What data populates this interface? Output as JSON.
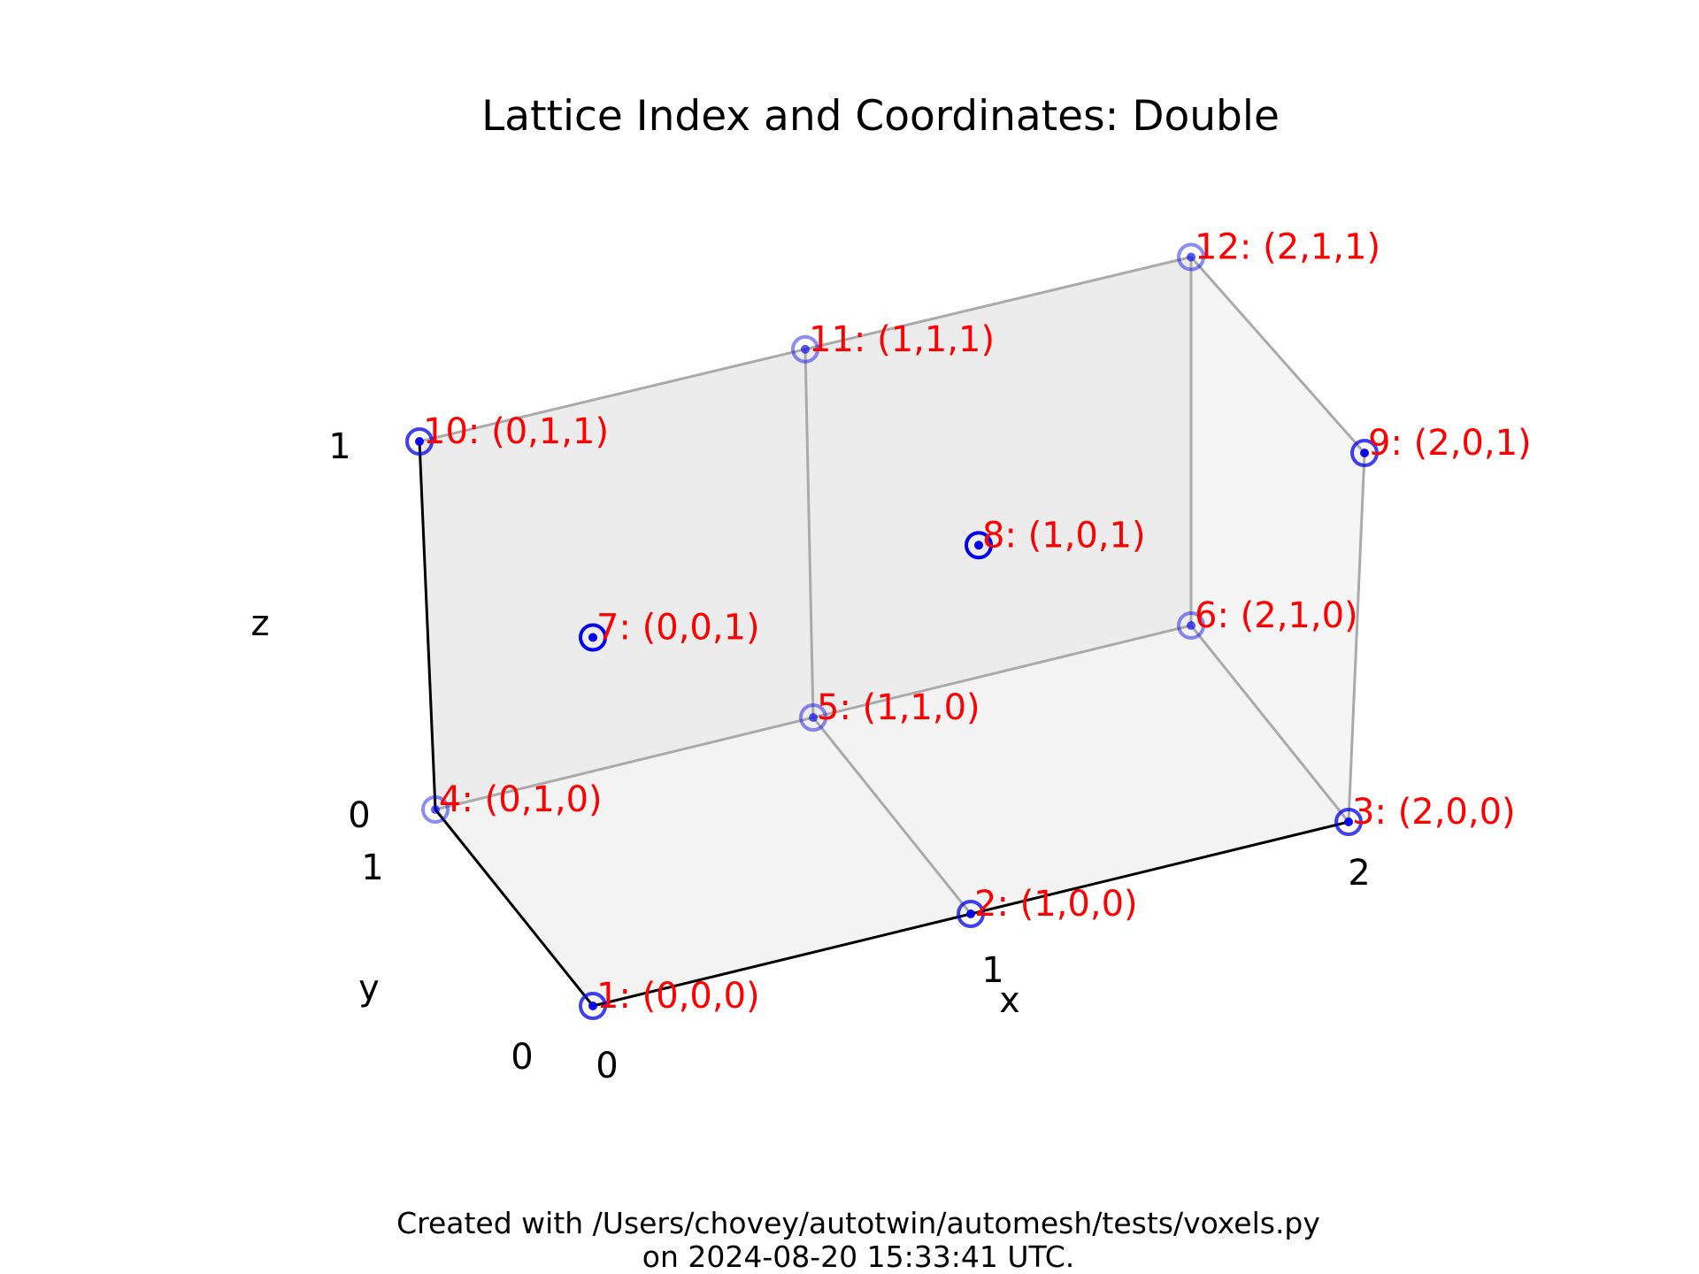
{
  "title": "Lattice Index and Coordinates: Double",
  "footer": {
    "line1": "Created with /Users/chovey/autotwin/automesh/tests/voxels.py",
    "line2": "on 2024-08-20 15:33:41 UTC."
  },
  "axes": {
    "x": {
      "label": "x",
      "ticks": [
        "0",
        "1",
        "2"
      ]
    },
    "y": {
      "label": "y",
      "ticks": [
        "0",
        "1"
      ]
    },
    "z": {
      "label": "z",
      "ticks": [
        "0",
        "1"
      ]
    }
  },
  "colors": {
    "point": "#0000ee",
    "label": "#ff0000",
    "edge": "#aaaaaa",
    "axis": "#000000",
    "face": "#eeeeee"
  },
  "chart_data": {
    "type": "scatter3d",
    "title": "Lattice Index and Coordinates: Double",
    "xlabel": "x",
    "ylabel": "y",
    "zlabel": "z",
    "xlim": [
      0,
      2
    ],
    "ylim": [
      0,
      1
    ],
    "zlim": [
      0,
      1
    ],
    "points": [
      {
        "index": 1,
        "x": 0,
        "y": 0,
        "z": 0,
        "label": "1: (0,0,0)"
      },
      {
        "index": 2,
        "x": 1,
        "y": 0,
        "z": 0,
        "label": "2: (1,0,0)"
      },
      {
        "index": 3,
        "x": 2,
        "y": 0,
        "z": 0,
        "label": "3: (2,0,0)"
      },
      {
        "index": 4,
        "x": 0,
        "y": 1,
        "z": 0,
        "label": "4: (0,1,0)"
      },
      {
        "index": 5,
        "x": 1,
        "y": 1,
        "z": 0,
        "label": "5: (1,1,0)"
      },
      {
        "index": 6,
        "x": 2,
        "y": 1,
        "z": 0,
        "label": "6: (2,1,0)"
      },
      {
        "index": 7,
        "x": 0,
        "y": 0,
        "z": 1,
        "label": "7: (0,0,1)"
      },
      {
        "index": 8,
        "x": 1,
        "y": 0,
        "z": 1,
        "label": "8: (1,0,1)"
      },
      {
        "index": 9,
        "x": 2,
        "y": 0,
        "z": 1,
        "label": "9: (2,0,1)"
      },
      {
        "index": 10,
        "x": 0,
        "y": 1,
        "z": 1,
        "label": "10: (0,1,1)"
      },
      {
        "index": 11,
        "x": 1,
        "y": 1,
        "z": 1,
        "label": "11: (1,1,1)"
      },
      {
        "index": 12,
        "x": 2,
        "y": 1,
        "z": 1,
        "label": "12: (2,1,1)"
      }
    ]
  }
}
